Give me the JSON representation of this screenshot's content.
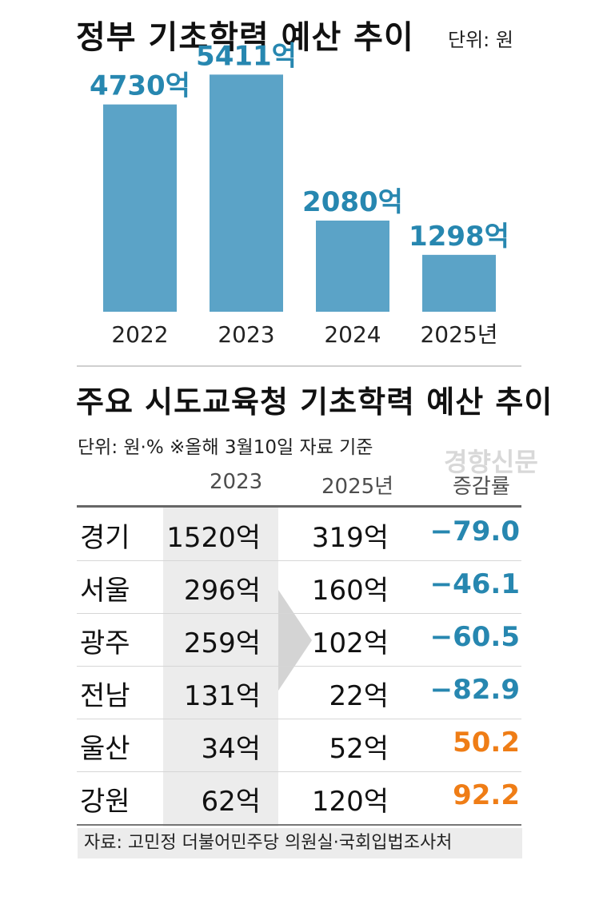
{
  "chart_data": [
    {
      "type": "bar",
      "title": "정부 기초학력 예산 추이",
      "unit_label": "단위: 원",
      "categories": [
        "2022",
        "2023",
        "2024",
        "2025년"
      ],
      "values": [
        4730,
        5411,
        2080,
        1298
      ],
      "value_labels": [
        "4730억",
        "5411억",
        "2080억",
        "1298억"
      ],
      "ylim": [
        0,
        5800
      ],
      "bar_color": "#5ba3c7",
      "label_color": "#2787b0"
    },
    {
      "type": "table",
      "title": "주요 시도교육청 기초학력 예산 추이",
      "unit_label": "단위: 원·% ※올해 3월10일 자료 기준",
      "headers": [
        "",
        "2023",
        "2025년",
        "증감률"
      ],
      "rows": [
        {
          "region": "경기",
          "y2023": "1520억",
          "y2025": "319억",
          "rate": "−79.0",
          "sign": "neg"
        },
        {
          "region": "서울",
          "y2023": "296억",
          "y2025": "160억",
          "rate": "−46.1",
          "sign": "neg"
        },
        {
          "region": "광주",
          "y2023": "259억",
          "y2025": "102억",
          "rate": "−60.5",
          "sign": "neg"
        },
        {
          "region": "전남",
          "y2023": "131억",
          "y2025": "22억",
          "rate": "−82.9",
          "sign": "neg"
        },
        {
          "region": "울산",
          "y2023": "34억",
          "y2025": "52억",
          "rate": "50.2",
          "sign": "pos"
        },
        {
          "region": "강원",
          "y2023": "62억",
          "y2025": "120억",
          "rate": "92.2",
          "sign": "pos"
        }
      ],
      "colors": {
        "negative": "#2787b0",
        "positive": "#ef7d16"
      }
    }
  ],
  "source": "자료: 고민정 더불어민주당 의원실·국회입법조사처",
  "watermark": "경향신문"
}
